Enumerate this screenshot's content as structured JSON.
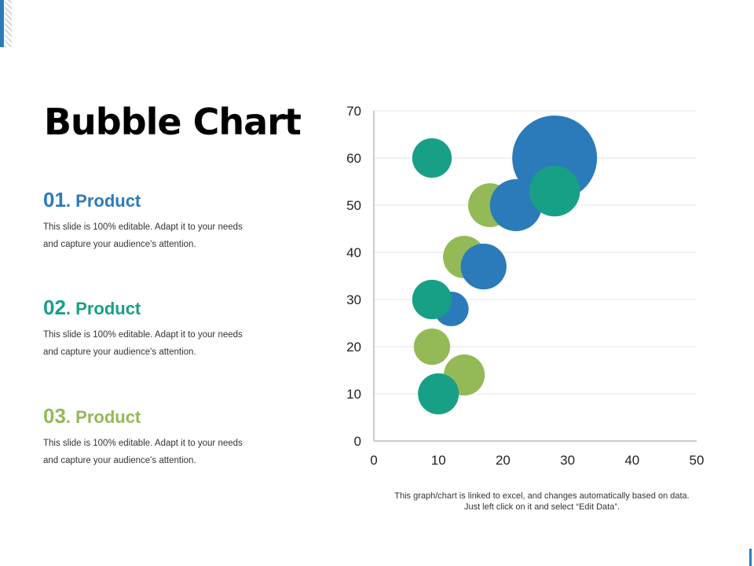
{
  "title": "Bubble Chart",
  "colors": {
    "blue": "#2b7bba",
    "teal": "#17a085",
    "green": "#94b957"
  },
  "products": [
    {
      "num": "01",
      "name": ". Product",
      "desc_line1": "This slide is 100% editable. Adapt it to your needs",
      "desc_line2": "and capture your audience's attention.",
      "color": "#2b7bba"
    },
    {
      "num": "02",
      "name": ". Product",
      "desc_line1": "This slide is 100% editable. Adapt it to your needs",
      "desc_line2": "and capture your audience's attention.",
      "color": "#17a085"
    },
    {
      "num": "03",
      "name": ". Product",
      "desc_line1": "This slide is 100% editable. Adapt it to your needs",
      "desc_line2": "and capture your audience's attention.",
      "color": "#94b957"
    }
  ],
  "chart_data": {
    "type": "scatter",
    "subtype": "bubble",
    "xlim": [
      0,
      50
    ],
    "ylim": [
      0,
      70
    ],
    "x_ticks": [
      0,
      10,
      20,
      30,
      40,
      50
    ],
    "y_ticks": [
      0,
      10,
      20,
      30,
      40,
      50,
      60,
      70
    ],
    "grid": "horizontal",
    "series": [
      {
        "color": "#94b957",
        "points": [
          {
            "x": 14,
            "y": 39,
            "size": 3
          },
          {
            "x": 18,
            "y": 50,
            "size": 3.2
          },
          {
            "x": 9,
            "y": 20,
            "size": 2.2
          },
          {
            "x": 14,
            "y": 14,
            "size": 2.8
          }
        ]
      },
      {
        "color": "#2b7bba",
        "points": [
          {
            "x": 28,
            "y": 60,
            "size": 12
          },
          {
            "x": 22,
            "y": 50,
            "size": 4.5
          },
          {
            "x": 17,
            "y": 37,
            "size": 3.5
          },
          {
            "x": 12,
            "y": 28,
            "size": 2
          }
        ]
      },
      {
        "color": "#17a085",
        "points": [
          {
            "x": 9,
            "y": 60,
            "size": 2.6
          },
          {
            "x": 28,
            "y": 53,
            "size": 4.3
          },
          {
            "x": 9,
            "y": 30,
            "size": 2.6
          },
          {
            "x": 10,
            "y": 10,
            "size": 2.8
          }
        ]
      }
    ]
  },
  "footnote": {
    "line1": "This graph/chart is linked to excel, and changes automatically based on data.",
    "line2": "Just left click on it and select “Edit Data”."
  }
}
